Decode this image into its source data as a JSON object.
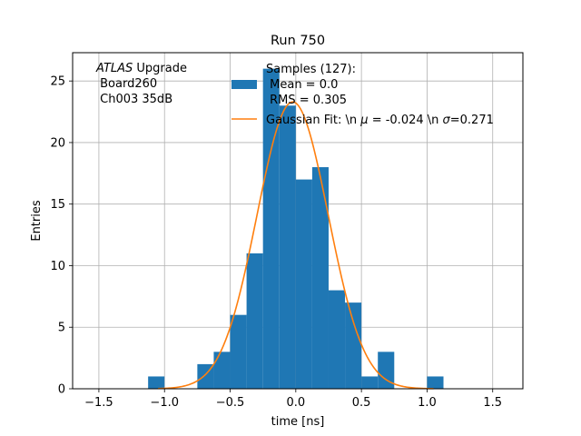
{
  "chart_data": {
    "type": "bar",
    "title": "Run 750",
    "xlabel": "time [ns]",
    "ylabel": "Entries",
    "xlim": [
      -1.7,
      1.73
    ],
    "ylim": [
      0,
      27.3
    ],
    "grid": true,
    "xticks": [
      -1.5,
      -1.0,
      -0.5,
      0.0,
      0.5,
      1.0,
      1.5
    ],
    "xtick_labels": [
      "−1.5",
      "−1.0",
      "−0.5",
      "0.0",
      "0.5",
      "1.0",
      "1.5"
    ],
    "yticks": [
      0,
      5,
      10,
      15,
      20,
      25
    ],
    "ytick_labels": [
      "0",
      "5",
      "10",
      "15",
      "20",
      "25"
    ],
    "bin_width": 0.125,
    "histogram": {
      "name": "Samples (127):\n Mean = 0.0\n RMS = 0.305",
      "color": "#1f77b4",
      "bins": [
        {
          "x0": -1.125,
          "x1": -1.0,
          "value": 1
        },
        {
          "x0": -0.75,
          "x1": -0.625,
          "value": 2
        },
        {
          "x0": -0.625,
          "x1": -0.5,
          "value": 3
        },
        {
          "x0": -0.5,
          "x1": -0.375,
          "value": 6
        },
        {
          "x0": -0.375,
          "x1": -0.25,
          "value": 11
        },
        {
          "x0": -0.25,
          "x1": -0.125,
          "value": 26
        },
        {
          "x0": -0.125,
          "x1": 0.0,
          "value": 23
        },
        {
          "x0": 0.0,
          "x1": 0.125,
          "value": 17
        },
        {
          "x0": 0.125,
          "x1": 0.25,
          "value": 18
        },
        {
          "x0": 0.25,
          "x1": 0.375,
          "value": 8
        },
        {
          "x0": 0.375,
          "x1": 0.5,
          "value": 7
        },
        {
          "x0": 0.5,
          "x1": 0.625,
          "value": 1
        },
        {
          "x0": 0.625,
          "x1": 0.75,
          "value": 3
        },
        {
          "x0": 1.0,
          "x1": 1.125,
          "value": 1
        }
      ]
    },
    "fit": {
      "name": "Gaussian Fit: \\n μ = -0.024 \\n σ=0.271",
      "color": "#ff7f0e",
      "mu": -0.024,
      "sigma": 0.271,
      "amplitude": 23.3,
      "x_range": [
        -1.05,
        1.05
      ]
    },
    "annotation": {
      "line1_italic": "ATLAS",
      "line1_rest": " Upgrade",
      "line2": " Board260",
      "line3": " Ch003 35dB"
    },
    "legend": {
      "placement": "top-right",
      "hist_lines": [
        "Samples (127):",
        " Mean = 0.0",
        " RMS = 0.305"
      ],
      "fit_prefix": "Gaussian Fit: \\n ",
      "fit_mu_sym": "μ",
      "fit_mid": " = -0.024 \\n ",
      "fit_sigma_sym": "σ",
      "fit_end": "=0.271"
    }
  }
}
